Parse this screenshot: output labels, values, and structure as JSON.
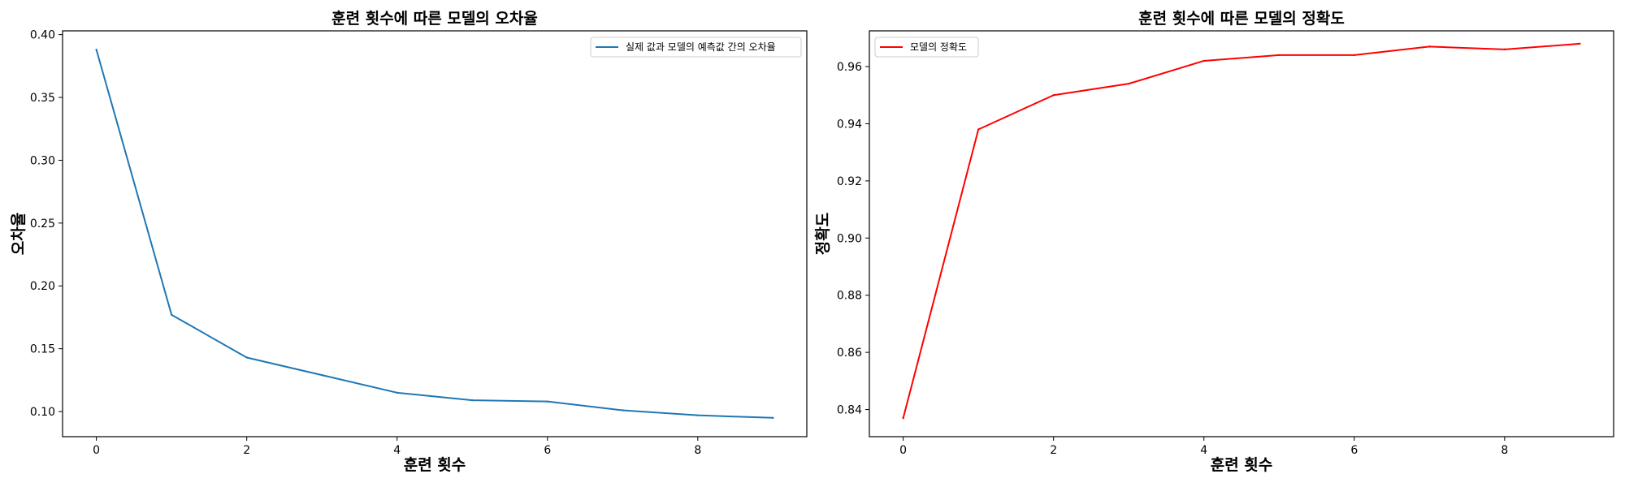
{
  "chart_data": [
    {
      "type": "line",
      "title": "훈련 횟수에 따른 모델의 오차율",
      "xlabel": "훈련 횟수",
      "ylabel": "오차율",
      "x": [
        0,
        1,
        2,
        3,
        4,
        5,
        6,
        7,
        8,
        9
      ],
      "xlim": [
        -0.45,
        9.45
      ],
      "ylim": [
        0.08,
        0.403
      ],
      "xticks": [
        0,
        2,
        4,
        6,
        8
      ],
      "xtick_labels": [
        "0",
        "2",
        "4",
        "6",
        "8"
      ],
      "yticks": [
        0.1,
        0.15,
        0.2,
        0.25,
        0.3,
        0.35,
        0.4
      ],
      "ytick_labels": [
        "0.10",
        "0.15",
        "0.20",
        "0.25",
        "0.30",
        "0.35",
        "0.40"
      ],
      "grid": false,
      "legend_position": "top-right",
      "series": [
        {
          "name": "실제 값과 모델의 예측값 간의 오차율",
          "color": "#1f77b4",
          "values": [
            0.388,
            0.177,
            0.143,
            0.129,
            0.115,
            0.109,
            0.108,
            0.101,
            0.097,
            0.095
          ]
        }
      ]
    },
    {
      "type": "line",
      "title": "훈련 횟수에 따른 모델의 정확도",
      "xlabel": "훈련 횟수",
      "ylabel": "정확도",
      "x": [
        0,
        1,
        2,
        3,
        4,
        5,
        6,
        7,
        8,
        9
      ],
      "xlim": [
        -0.45,
        9.45
      ],
      "ylim": [
        0.8305,
        0.9725
      ],
      "xticks": [
        0,
        2,
        4,
        6,
        8
      ],
      "xtick_labels": [
        "0",
        "2",
        "4",
        "6",
        "8"
      ],
      "yticks": [
        0.84,
        0.86,
        0.88,
        0.9,
        0.92,
        0.94,
        0.96
      ],
      "ytick_labels": [
        "0.84",
        "0.86",
        "0.88",
        "0.90",
        "0.92",
        "0.94",
        "0.96"
      ],
      "grid": false,
      "legend_position": "top-left",
      "series": [
        {
          "name": "모델의 정확도",
          "color": "#ff0000",
          "values": [
            0.837,
            0.938,
            0.95,
            0.954,
            0.962,
            0.964,
            0.964,
            0.967,
            0.966,
            0.968
          ]
        }
      ]
    }
  ]
}
